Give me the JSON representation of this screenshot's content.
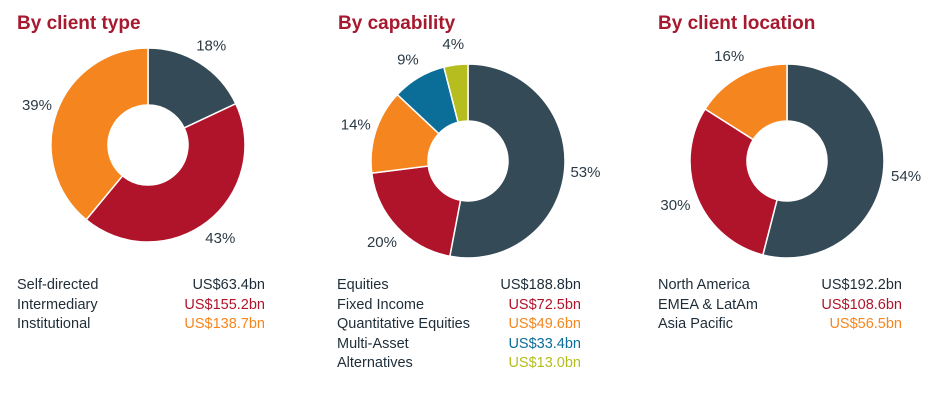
{
  "colors": {
    "title": "#a6192e",
    "slate": "#354a57",
    "red": "#b0142b",
    "orange": "#f5861f",
    "blue": "#0b6e99",
    "olive": "#b5bd1f"
  },
  "chart_data": [
    {
      "type": "pie",
      "title": "By client type",
      "labels": [
        "Self-directed",
        "Intermediary",
        "Institutional"
      ],
      "values": [
        18,
        43,
        39
      ],
      "percent_labels": [
        "18%",
        "43%",
        "39%"
      ],
      "amounts": [
        "US$63.4bn",
        "US$155.2bn",
        "US$138.7bn"
      ],
      "colors": [
        "#354a57",
        "#b0142b",
        "#f5861f"
      ],
      "value_colors": [
        "#1e2d38",
        "#b0142b",
        "#f5861f"
      ]
    },
    {
      "type": "pie",
      "title": "By capability",
      "labels": [
        "Equities",
        "Fixed Income",
        "Quantitative Equities",
        "Multi-Asset",
        "Alternatives"
      ],
      "values": [
        53,
        20,
        14,
        9,
        4
      ],
      "percent_labels": [
        "53%",
        "20%",
        "14%",
        "9%",
        "4%"
      ],
      "amounts": [
        "US$188.8bn",
        "US$72.5bn",
        "US$49.6bn",
        "US$33.4bn",
        "US$13.0bn"
      ],
      "colors": [
        "#354a57",
        "#b0142b",
        "#f5861f",
        "#0b6e99",
        "#b5bd1f"
      ],
      "value_colors": [
        "#1e2d38",
        "#b0142b",
        "#f5861f",
        "#0b6e99",
        "#b5bd1f"
      ]
    },
    {
      "type": "pie",
      "title": "By client location",
      "labels": [
        "North America",
        "EMEA & LatAm",
        "Asia Pacific"
      ],
      "values": [
        54,
        30,
        16
      ],
      "percent_labels": [
        "54%",
        "30%",
        "16%"
      ],
      "amounts": [
        "US$192.2bn",
        "US$108.6bn",
        "US$56.5bn"
      ],
      "colors": [
        "#354a57",
        "#b0142b",
        "#f5861f"
      ],
      "value_colors": [
        "#1e2d38",
        "#b0142b",
        "#f5861f"
      ]
    }
  ]
}
